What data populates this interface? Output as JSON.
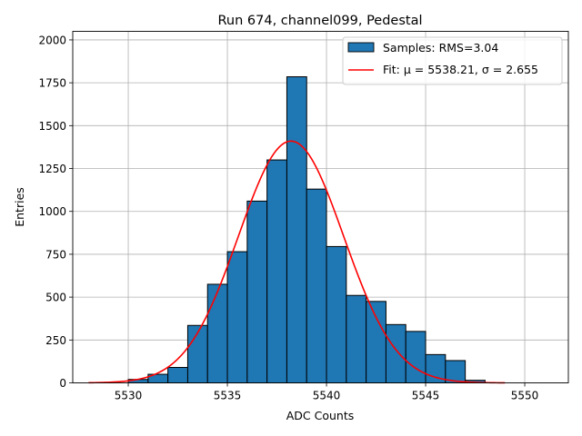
{
  "chart_data": {
    "type": "bar",
    "title": "Run 674, channel099, Pedestal",
    "xlabel": "ADC Counts",
    "ylabel": "Entries",
    "xlim": [
      5527.2,
      5552.2
    ],
    "ylim": [
      0,
      2050
    ],
    "xticks": [
      5530,
      5535,
      5540,
      5545,
      5550
    ],
    "yticks": [
      0,
      250,
      500,
      750,
      1000,
      1250,
      1500,
      1750,
      2000
    ],
    "grid": true,
    "bin_width": 1,
    "bins": [
      {
        "left": 5530,
        "value": 20
      },
      {
        "left": 5531,
        "value": 50
      },
      {
        "left": 5532,
        "value": 90
      },
      {
        "left": 5533,
        "value": 335
      },
      {
        "left": 5534,
        "value": 575
      },
      {
        "left": 5535,
        "value": 765
      },
      {
        "left": 5536,
        "value": 1060
      },
      {
        "left": 5537,
        "value": 1300
      },
      {
        "left": 5538,
        "value": 1785
      },
      {
        "left": 5539,
        "value": 1130
      },
      {
        "left": 5540,
        "value": 795
      },
      {
        "left": 5541,
        "value": 510
      },
      {
        "left": 5542,
        "value": 475
      },
      {
        "left": 5543,
        "value": 340
      },
      {
        "left": 5544,
        "value": 300
      },
      {
        "left": 5545,
        "value": 165
      },
      {
        "left": 5546,
        "value": 130
      },
      {
        "left": 5547,
        "value": 15
      }
    ],
    "fit": {
      "mu": 5538.21,
      "sigma": 2.655,
      "amplitude": 1410,
      "x_range": [
        5528,
        5549
      ],
      "color": "#ff0000"
    },
    "bar_color": "#1f77b4",
    "legend": {
      "position": "top-right",
      "entries": [
        {
          "label": "Samples: RMS=3.04",
          "kind": "patch"
        },
        {
          "label": "Fit: μ = 5538.21, σ = 2.655",
          "kind": "line"
        }
      ]
    }
  }
}
